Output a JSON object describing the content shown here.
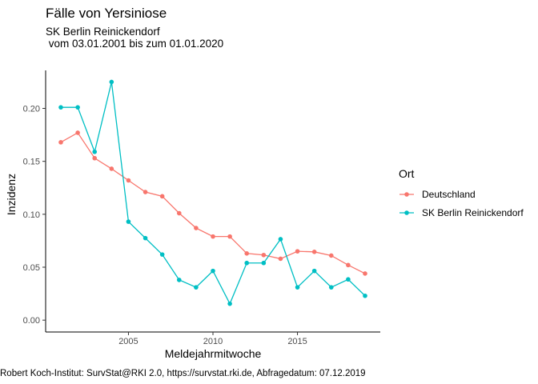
{
  "chart_data": {
    "type": "line",
    "title": "Fälle von Yersiniose",
    "subtitle_line1": "SK Berlin Reinickendorf",
    "subtitle_line2": " vom 03.01.2001 bis zum 01.01.2020",
    "xlabel": "Meldejahrmitwoche",
    "ylabel": "Inzidenz",
    "caption": "Robert Koch-Institut: SurvStat@RKI 2.0, https://survstat.rki.de, Abfragedatum: 07.12.2019",
    "xlim": [
      2000.1,
      2019.9
    ],
    "ylim": [
      -0.0112,
      0.2359
    ],
    "x_ticks": [
      2005,
      2010,
      2015
    ],
    "x_tick_labels": [
      "2005",
      "2010",
      "2015"
    ],
    "y_ticks": [
      0,
      0.05,
      0.1,
      0.15,
      0.2
    ],
    "y_tick_labels": [
      "0.00",
      "0.05",
      "0.10",
      "0.15",
      "0.20"
    ],
    "grid": false,
    "legend": {
      "title": "Ort",
      "placement": "right"
    },
    "x": [
      2001,
      2002,
      2003,
      2004,
      2005,
      2006,
      2007,
      2008,
      2009,
      2010,
      2011,
      2012,
      2013,
      2014,
      2015,
      2016,
      2017,
      2018,
      2019
    ],
    "series": [
      {
        "name": "Deutschland",
        "color": "#F8766D",
        "values": [
          0.168,
          0.177,
          0.153,
          0.143,
          0.132,
          0.121,
          0.117,
          0.101,
          0.087,
          0.079,
          0.079,
          0.063,
          0.0615,
          0.058,
          0.065,
          0.0645,
          0.061,
          0.052,
          0.044
        ]
      },
      {
        "name": "SK Berlin Reinickendorf",
        "color": "#00BFC4",
        "values": [
          0.201,
          0.201,
          0.159,
          0.225,
          0.093,
          0.0775,
          0.062,
          0.038,
          0.031,
          0.0465,
          0.0155,
          0.054,
          0.054,
          0.0765,
          0.031,
          0.0465,
          0.031,
          0.0385,
          0.023
        ]
      }
    ]
  }
}
